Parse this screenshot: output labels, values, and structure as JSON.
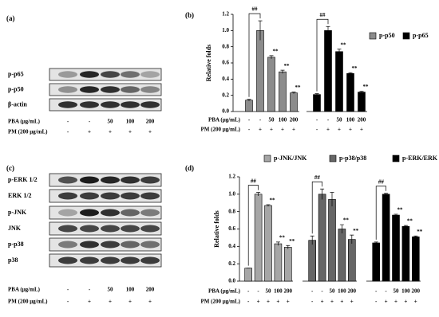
{
  "figure": {
    "panel_a": {
      "label": "(a)",
      "rows": [
        "p-p65",
        "p-p50",
        "β-actin"
      ]
    },
    "panel_c": {
      "label": "(c)",
      "rows": [
        "p-ERK 1/2",
        "ERK 1/2",
        "p-JNK",
        "JNK",
        "p-p38",
        "p38"
      ]
    },
    "treatments": [
      {
        "label": "PBA (μg/mL)",
        "values": [
          "-",
          "-",
          "50",
          "100",
          "200"
        ]
      },
      {
        "label": "PM (200 μg/mL)",
        "values": [
          "-",
          "+",
          "+",
          "+",
          "+"
        ]
      }
    ]
  },
  "chart_data": [
    {
      "type": "bar",
      "panel_label": "(b)",
      "ylabel": "Relative folds",
      "ylim": [
        0,
        1.2
      ],
      "yticks": [
        {
          "value": 0,
          "label": "0.0"
        },
        0.2,
        0.4,
        0.6,
        0.8,
        {
          "value": 1,
          "label": "1.0"
        },
        1.2
      ],
      "series": [
        {
          "name": "p-p50",
          "color": "#8c8c8c",
          "values": [
            0.14,
            1.0,
            0.67,
            0.49,
            0.23
          ],
          "errors": [
            0.01,
            0.12,
            0.02,
            0.02,
            0.01
          ],
          "significance": [
            null,
            "##",
            "**",
            "**",
            "**"
          ]
        },
        {
          "name": "p-p65",
          "color": "#000000",
          "values": [
            0.21,
            1.0,
            0.74,
            0.47,
            0.24
          ],
          "errors": [
            0.01,
            0.05,
            0.03,
            0.01,
            0.01
          ],
          "significance": [
            null,
            "##",
            "**",
            "**",
            "**"
          ]
        }
      ]
    },
    {
      "type": "bar",
      "panel_label": "(d)",
      "ylabel": "Relative folds",
      "ylim": [
        0,
        1.2
      ],
      "yticks": [
        {
          "value": 0,
          "label": "0.0"
        },
        0.2,
        0.4,
        0.6,
        0.8,
        {
          "value": 1,
          "label": "1.0"
        },
        1.2
      ],
      "series": [
        {
          "name": "p-JNK/JNK",
          "color": "#a6a6a6",
          "values": [
            0.15,
            1.0,
            0.87,
            0.43,
            0.39
          ],
          "errors": [
            0,
            0.02,
            0.01,
            0.02,
            0.02
          ],
          "significance": [
            null,
            "##",
            "**",
            "**",
            "**"
          ]
        },
        {
          "name": "p-p38/p38",
          "color": "#666666",
          "values": [
            0.47,
            1.0,
            0.94,
            0.6,
            0.48
          ],
          "errors": [
            0.05,
            0.06,
            0.08,
            0.05,
            0.05
          ],
          "significance": [
            null,
            "##",
            null,
            "**",
            "**"
          ]
        },
        {
          "name": "p-ERK/ERK",
          "color": "#000000",
          "values": [
            0.44,
            1.0,
            0.76,
            0.63,
            0.51
          ],
          "errors": [
            0.01,
            0.01,
            0.01,
            0.01,
            0.01
          ],
          "significance": [
            null,
            "##",
            "**",
            "**",
            "**"
          ]
        }
      ]
    }
  ]
}
